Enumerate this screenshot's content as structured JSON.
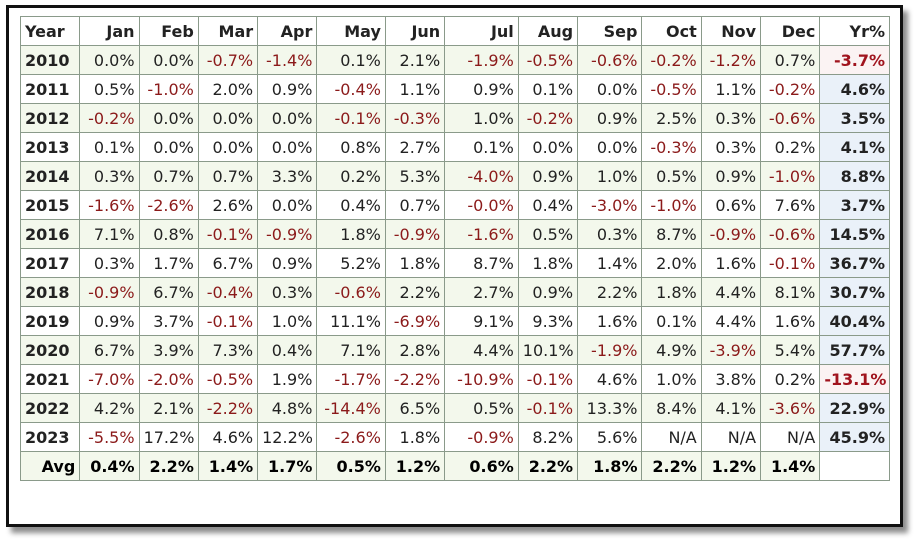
{
  "chart_data": {
    "type": "table",
    "columns": [
      "Year",
      "Jan",
      "Feb",
      "Mar",
      "Apr",
      "May",
      "Jun",
      "Jul",
      "Aug",
      "Sep",
      "Oct",
      "Nov",
      "Dec",
      "Yr%"
    ],
    "rows": [
      [
        "2010",
        "0.0%",
        "0.0%",
        "-0.7%",
        "-1.4%",
        "0.1%",
        "2.1%",
        "-1.9%",
        "-0.5%",
        "-0.6%",
        "-0.2%",
        "-1.2%",
        "0.7%",
        "-3.7%"
      ],
      [
        "2011",
        "0.5%",
        "-1.0%",
        "2.0%",
        "0.9%",
        "-0.4%",
        "1.1%",
        "0.9%",
        "0.1%",
        "0.0%",
        "-0.5%",
        "1.1%",
        "-0.2%",
        "4.6%"
      ],
      [
        "2012",
        "-0.2%",
        "0.0%",
        "0.0%",
        "0.0%",
        "-0.1%",
        "-0.3%",
        "1.0%",
        "-0.2%",
        "0.9%",
        "2.5%",
        "0.3%",
        "-0.6%",
        "3.5%"
      ],
      [
        "2013",
        "0.1%",
        "0.0%",
        "0.0%",
        "0.0%",
        "0.8%",
        "2.7%",
        "0.1%",
        "0.0%",
        "0.0%",
        "-0.3%",
        "0.3%",
        "0.2%",
        "4.1%"
      ],
      [
        "2014",
        "0.3%",
        "0.7%",
        "0.7%",
        "3.3%",
        "0.2%",
        "5.3%",
        "-4.0%",
        "0.9%",
        "1.0%",
        "0.5%",
        "0.9%",
        "-1.0%",
        "8.8%"
      ],
      [
        "2015",
        "-1.6%",
        "-2.6%",
        "2.6%",
        "0.0%",
        "0.4%",
        "0.7%",
        "-0.0%",
        "0.4%",
        "-3.0%",
        "-1.0%",
        "0.6%",
        "7.6%",
        "3.7%"
      ],
      [
        "2016",
        "7.1%",
        "0.8%",
        "-0.1%",
        "-0.9%",
        "1.8%",
        "-0.9%",
        "-1.6%",
        "0.5%",
        "0.3%",
        "8.7%",
        "-0.9%",
        "-0.6%",
        "14.5%"
      ],
      [
        "2017",
        "0.3%",
        "1.7%",
        "6.7%",
        "0.9%",
        "5.2%",
        "1.8%",
        "8.7%",
        "1.8%",
        "1.4%",
        "2.0%",
        "1.6%",
        "-0.1%",
        "36.7%"
      ],
      [
        "2018",
        "-0.9%",
        "6.7%",
        "-0.4%",
        "0.3%",
        "-0.6%",
        "2.2%",
        "2.7%",
        "0.9%",
        "2.2%",
        "1.8%",
        "4.4%",
        "8.1%",
        "30.7%"
      ],
      [
        "2019",
        "0.9%",
        "3.7%",
        "-0.1%",
        "1.0%",
        "11.1%",
        "-6.9%",
        "9.1%",
        "9.3%",
        "1.6%",
        "0.1%",
        "4.4%",
        "1.6%",
        "40.4%"
      ],
      [
        "2020",
        "6.7%",
        "3.9%",
        "7.3%",
        "0.4%",
        "7.1%",
        "2.8%",
        "4.4%",
        "10.1%",
        "-1.9%",
        "4.9%",
        "-3.9%",
        "5.4%",
        "57.7%"
      ],
      [
        "2021",
        "-7.0%",
        "-2.0%",
        "-0.5%",
        "1.9%",
        "-1.7%",
        "-2.2%",
        "-10.9%",
        "-0.1%",
        "4.6%",
        "1.0%",
        "3.8%",
        "0.2%",
        "-13.1%"
      ],
      [
        "2022",
        "4.2%",
        "2.1%",
        "-2.2%",
        "4.8%",
        "-14.4%",
        "6.5%",
        "0.5%",
        "-0.1%",
        "13.3%",
        "8.4%",
        "4.1%",
        "-3.6%",
        "22.9%"
      ],
      [
        "2023",
        "-5.5%",
        "17.2%",
        "4.6%",
        "12.2%",
        "-2.6%",
        "1.8%",
        "-0.9%",
        "8.2%",
        "5.6%",
        "N/A",
        "N/A",
        "N/A",
        "45.9%"
      ]
    ],
    "footer": [
      "Avg",
      "0.4%",
      "2.2%",
      "1.4%",
      "1.7%",
      "0.5%",
      "1.2%",
      "0.6%",
      "2.2%",
      "1.8%",
      "2.2%",
      "1.2%",
      "1.4%",
      ""
    ]
  },
  "colors": {
    "negative": "#8b1a1a",
    "positive": "#222222",
    "row_alt": "#f3f8ec",
    "year_total_bg": "#eaf1f9"
  }
}
